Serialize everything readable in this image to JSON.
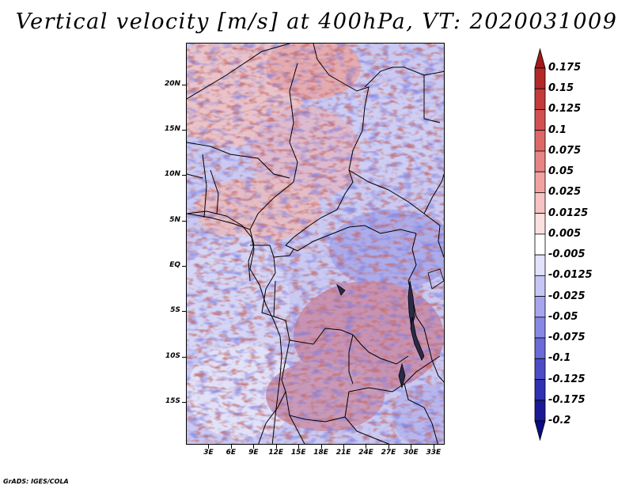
{
  "title": "Vertical velocity [m/s] at 400hPa, VT: 2020031009",
  "credit": "GrADS: IGES/COLA",
  "map": {
    "lat_labels": [
      "20N",
      "15N",
      "10N",
      "5N",
      "EQ",
      "5S",
      "10S",
      "15S"
    ],
    "lat_values": [
      20,
      15,
      10,
      5,
      0,
      -5,
      -10,
      -15
    ],
    "lon_labels": [
      "3E",
      "6E",
      "9E",
      "12E",
      "15E",
      "18E",
      "21E",
      "24E",
      "27E",
      "30E",
      "33E"
    ],
    "lon_values": [
      3,
      6,
      9,
      12,
      15,
      18,
      21,
      24,
      27,
      30,
      33
    ],
    "lon_range": [
      0,
      34.5
    ],
    "lat_range": [
      -19.7,
      24.6
    ]
  },
  "colorbar": {
    "levels": [
      "0.175",
      "0.15",
      "0.125",
      "0.1",
      "0.075",
      "0.05",
      "0.025",
      "0.0125",
      "0.005",
      "-0.005",
      "-0.0125",
      "-0.025",
      "-0.05",
      "-0.075",
      "-0.1",
      "-0.125",
      "-0.175",
      "-0.2"
    ],
    "colors": [
      "#a01a1a",
      "#b42828",
      "#c53a3a",
      "#d35050",
      "#de6868",
      "#e88484",
      "#f0a2a2",
      "#f7c2c2",
      "#fbe0e0",
      "#ffffff",
      "#e2e2fb",
      "#c6c6f5",
      "#a6a6ee",
      "#8888e6",
      "#6a6ad8",
      "#4c4cc8",
      "#3030b2",
      "#1a1a96",
      "#0c0c82"
    ]
  }
}
